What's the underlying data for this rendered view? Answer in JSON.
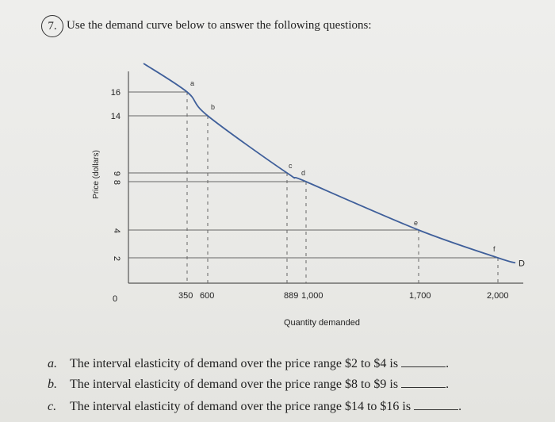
{
  "question": {
    "number": "7.",
    "prompt": "Use the demand curve below to answer the following questions:"
  },
  "chart_data": {
    "type": "line",
    "title": "",
    "xlabel": "Quantity demanded",
    "ylabel": "Price (dollars)",
    "x_ticks": [
      "0",
      "350",
      "600",
      "889",
      "1,000",
      "1,700",
      "2,000"
    ],
    "y_ticks": [
      "16",
      "14",
      "9",
      "8",
      "4",
      "2"
    ],
    "xlim": [
      0,
      2000
    ],
    "ylim": [
      0,
      18
    ],
    "series": [
      {
        "name": "D",
        "x": [
          90,
          350,
          600,
          889,
          1000,
          1700,
          2000,
          2100
        ],
        "y": [
          18,
          16,
          14,
          9,
          8,
          4,
          2,
          1.6
        ]
      }
    ],
    "points": [
      {
        "label": "a",
        "x": 350,
        "y": 16
      },
      {
        "label": "b",
        "x": 600,
        "y": 14
      },
      {
        "label": "c",
        "x": 889,
        "y": 9
      },
      {
        "label": "d",
        "x": 1000,
        "y": 8
      },
      {
        "label": "e",
        "x": 1700,
        "y": 4
      },
      {
        "label": "f",
        "x": 2000,
        "y": 2
      }
    ],
    "curve_label": "D",
    "grid": false,
    "colors": {
      "curve": "#3f5f9a",
      "axis": "#555555"
    }
  },
  "questions": [
    {
      "letter": "a.",
      "text": "The interval elasticity of demand over the price range $2 to $4 is",
      "end": "."
    },
    {
      "letter": "b.",
      "text": "The interval elasticity of demand over the price range $8 to $9 is",
      "end": "."
    },
    {
      "letter": "c.",
      "text": "The interval elasticity of demand over the price range $14 to $16 is",
      "end": "."
    }
  ]
}
